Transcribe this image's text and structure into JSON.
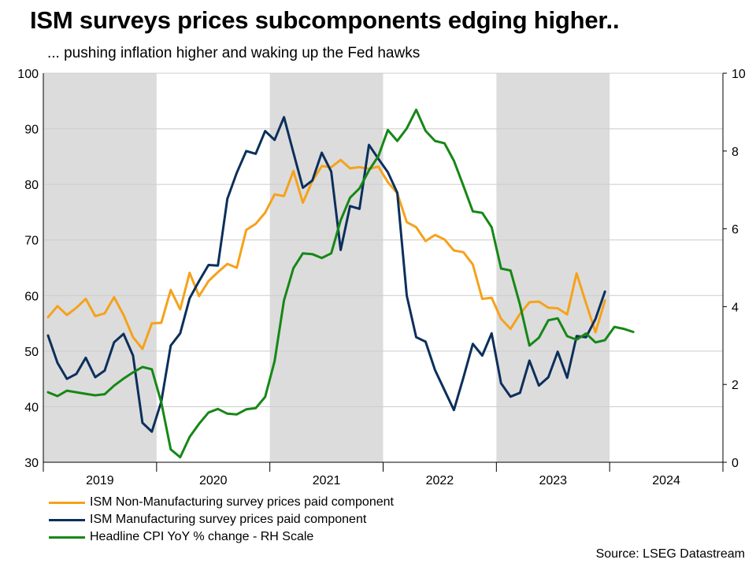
{
  "title": "ISM surveys prices subcomponents edging higher..",
  "subtitle": "... pushing inflation higher and waking up the Fed hawks",
  "source": "Source: LSEG Datastream",
  "colors": {
    "ism_nonmanufacturing": "#f5a21b",
    "ism_manufacturing": "#0c2f5c",
    "cpi": "#168716",
    "shade": "#dcdcdc",
    "grid": "#cccccc"
  },
  "chart_data": {
    "type": "line",
    "x_start": "Jan 2019",
    "x_end": "Dec 2024",
    "x_tick_labels": [
      "2019",
      "2020",
      "2021",
      "2022",
      "2023",
      "2024"
    ],
    "y_left": {
      "range": [
        30,
        100
      ],
      "ticks": [
        "30",
        "40",
        "50",
        "60",
        "70",
        "80",
        "90",
        "100"
      ]
    },
    "y_right": {
      "range": [
        0,
        10
      ],
      "ticks": [
        "0",
        "2",
        "4",
        "6",
        "8",
        "10"
      ]
    },
    "grid": true,
    "legend_position": "bottom-left",
    "shaded_periods": [
      {
        "start": "Jan 2019",
        "end": "Dec 2019"
      },
      {
        "start": "Jan 2021",
        "end": "Dec 2021"
      },
      {
        "start": "Jan 2023",
        "end": "Dec 2023"
      }
    ],
    "series": [
      {
        "name": "ISM Non-Manufacturing survey prices paid component",
        "axis": "left",
        "start": "Jan 2019",
        "values": [
          56.1,
          58.1,
          56.5,
          57.8,
          59.4,
          56.3,
          56.8,
          59.7,
          56.5,
          52.5,
          50.4,
          55.0,
          55.1,
          61.0,
          57.5,
          64.1,
          59.9,
          62.6,
          64.2,
          65.7,
          65.0,
          71.8,
          72.9,
          74.9,
          78.2,
          77.9,
          82.4,
          76.7,
          80.6,
          83.3,
          83.1,
          84.4,
          82.9,
          83.1,
          82.8,
          83.2,
          80.4,
          78.4,
          73.2,
          72.3,
          69.8,
          70.9,
          70.1,
          68.1,
          67.8,
          65.6,
          59.4,
          59.6,
          55.8,
          54.0,
          56.7,
          58.8,
          58.9,
          57.8,
          57.7,
          56.6,
          64.0,
          58.6,
          53.4,
          59.1
        ]
      },
      {
        "name": "ISM Manufacturing survey prices paid component",
        "axis": "left",
        "start": "Jan 2019",
        "values": [
          52.8,
          47.9,
          45.0,
          45.9,
          48.8,
          45.3,
          46.5,
          51.6,
          53.1,
          49.2,
          37.1,
          35.5,
          40.9,
          51.0,
          53.2,
          59.5,
          62.6,
          65.5,
          65.4,
          77.4,
          82.1,
          86.0,
          85.5,
          89.6,
          88.0,
          92.1,
          85.7,
          79.4,
          80.7,
          85.7,
          82.3,
          68.2,
          76.1,
          75.6,
          87.1,
          84.6,
          82.2,
          78.5,
          60.0,
          52.5,
          51.7,
          46.6,
          43.0,
          39.4,
          45.2,
          51.3,
          49.2,
          53.2,
          44.2,
          41.8,
          42.5,
          48.3,
          43.8,
          45.3,
          49.9,
          45.2,
          52.7,
          52.5,
          55.8,
          60.7
        ]
      },
      {
        "name": "Headline CPI YoY % change - RH Scale",
        "axis": "right",
        "start": "Jan 2019",
        "values": [
          1.8,
          1.7,
          1.84,
          1.8,
          1.76,
          1.72,
          1.75,
          1.97,
          2.15,
          2.31,
          2.45,
          2.39,
          1.54,
          0.33,
          0.13,
          0.65,
          0.99,
          1.28,
          1.37,
          1.25,
          1.23,
          1.36,
          1.39,
          1.68,
          2.6,
          4.16,
          4.99,
          5.37,
          5.35,
          5.25,
          5.37,
          6.22,
          6.8,
          7.04,
          7.5,
          7.87,
          8.54,
          8.26,
          8.58,
          9.06,
          8.52,
          8.26,
          8.2,
          7.75,
          7.11,
          6.45,
          6.41,
          6.04,
          4.98,
          4.93,
          4.05,
          3.0,
          3.2,
          3.65,
          3.7,
          3.24,
          3.15,
          3.31,
          3.08,
          3.14,
          3.48,
          3.43,
          3.35
        ]
      }
    ]
  }
}
